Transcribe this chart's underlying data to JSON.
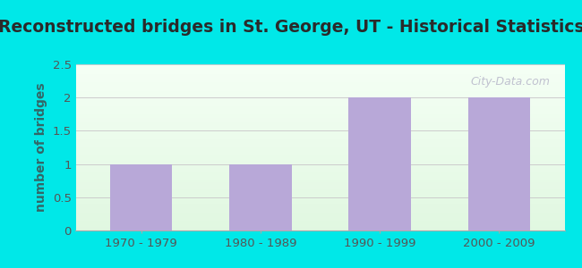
{
  "title": "Reconstructed bridges in St. George, UT - Historical Statistics",
  "categories": [
    "1970 - 1979",
    "1980 - 1989",
    "1990 - 1999",
    "2000 - 2009"
  ],
  "values": [
    1,
    1,
    2,
    2
  ],
  "bar_color": "#b8a8d8",
  "ylabel": "number of bridges",
  "ylim": [
    0,
    2.5
  ],
  "yticks": [
    0,
    0.5,
    1,
    1.5,
    2,
    2.5
  ],
  "background_outer": "#00e8e8",
  "background_inner_top": "#f5fff5",
  "background_inner_bottom": "#dff5df",
  "grid_color": "#cccccc",
  "title_fontsize": 13.5,
  "ylabel_fontsize": 10,
  "tick_fontsize": 9.5,
  "watermark": "City-Data.com",
  "bar_width": 0.52,
  "title_color": "#2a2a2a",
  "ylabel_color": "#336666",
  "tick_color": "#555555"
}
